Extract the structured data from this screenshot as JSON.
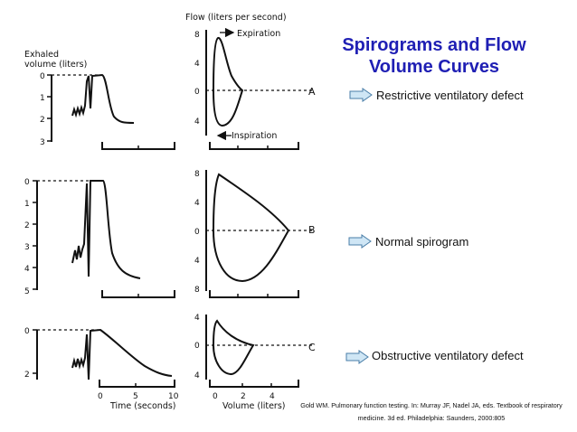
{
  "title": {
    "line1": "Spirograms and Flow",
    "line2": "Volume Curves"
  },
  "panels": [
    {
      "letter": "A",
      "label": "Restrictive ventilatory defect"
    },
    {
      "letter": "B",
      "label": "Normal spirogram"
    },
    {
      "letter": "C",
      "label": "Obstructive ventilatory defect"
    }
  ],
  "figure": {
    "flow_axis_title": "Flow (liters per second)",
    "expiration_label": "Expiration",
    "inspiration_label": "Inspiration",
    "volume_axis_title": "Exhaled volume (liters)",
    "volume_axis_title_line1": "Exhaled",
    "volume_axis_title_line2": "volume (liters)",
    "time_axis_title": "Time (seconds)",
    "volume_x_axis_title": "Volume (liters)",
    "spiro_A_ticks": [
      "0",
      "1",
      "2",
      "3"
    ],
    "spiro_B_ticks": [
      "0",
      "1",
      "2",
      "3",
      "4",
      "5"
    ],
    "spiro_C_ticks": [
      "0",
      "2"
    ],
    "flow_A_ticks": [
      "8",
      "4",
      "0",
      "4"
    ],
    "flow_B_ticks": [
      "8",
      "4",
      "0",
      "4",
      "8"
    ],
    "flow_C_ticks": [
      "4",
      "0",
      "4"
    ],
    "time_ticks": [
      "0",
      "5",
      "10"
    ],
    "volume_ticks": [
      "0",
      "2",
      "4"
    ]
  },
  "citation": {
    "line1": "Gold WM. Pulmonary function testing. In: Murray JF, Nadel JA, eds. Textbook of respiratory",
    "line2": "medicine. 3d ed. Philadelphia: Saunders, 2000:805"
  },
  "colors": {
    "title": "#1f1fb4",
    "arrow_fill": "#cfe6f5",
    "arrow_stroke": "#4a7ea8",
    "ink": "#111111"
  }
}
